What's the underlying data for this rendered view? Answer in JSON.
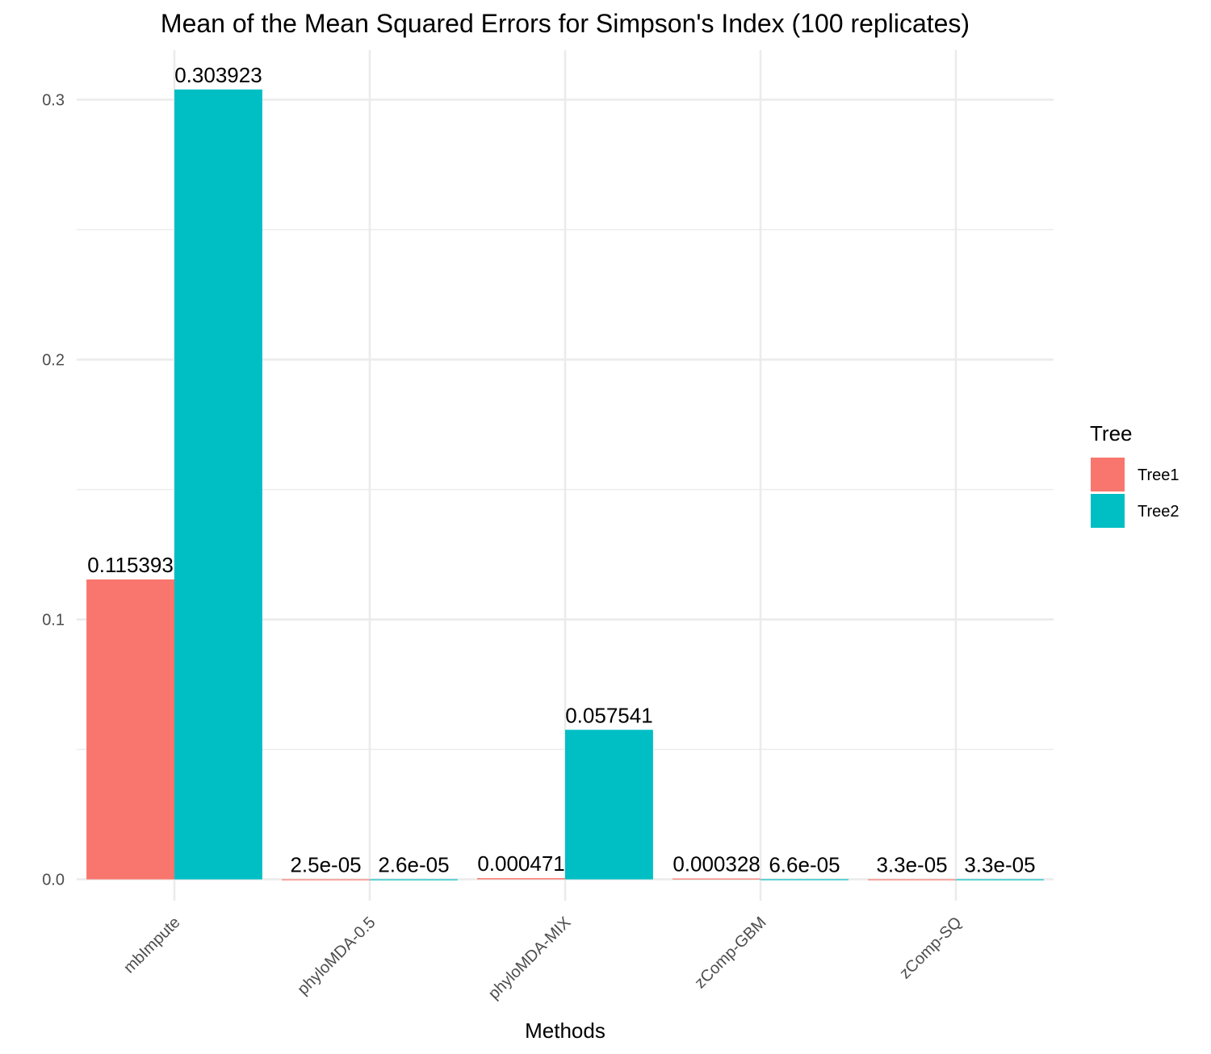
{
  "chart_data": {
    "type": "bar",
    "title": "Mean of the Mean Squared Errors for Simpson's Index (100 replicates)",
    "xlabel": "Methods",
    "ylabel": "",
    "categories": [
      "mbImpute",
      "phyloMDA-0.5",
      "phyloMDA-MIX",
      "zComp-GBM",
      "zComp-SQ"
    ],
    "series": [
      {
        "name": "Tree1",
        "color": "#F8766D",
        "values": [
          0.115393,
          2.5e-05,
          0.000471,
          0.000328,
          3.3e-05
        ],
        "labels": [
          "0.115393",
          "2.5e-05",
          "0.000471",
          "0.000328",
          "3.3e-05"
        ]
      },
      {
        "name": "Tree2",
        "color": "#00BFC4",
        "values": [
          0.303923,
          2.6e-05,
          0.057541,
          6.6e-05,
          3.3e-05
        ],
        "labels": [
          "0.303923",
          "2.6e-05",
          "0.057541",
          "6.6e-05",
          "3.3e-05"
        ]
      }
    ],
    "ylim": [
      -0.0082,
      0.3191
    ],
    "yticks": [
      0.0,
      0.1,
      0.2,
      0.3
    ],
    "ytick_labels": [
      "0.0",
      "0.1",
      "0.2",
      "0.3"
    ],
    "legend": {
      "title": "Tree",
      "position": "right"
    },
    "grid": true
  }
}
